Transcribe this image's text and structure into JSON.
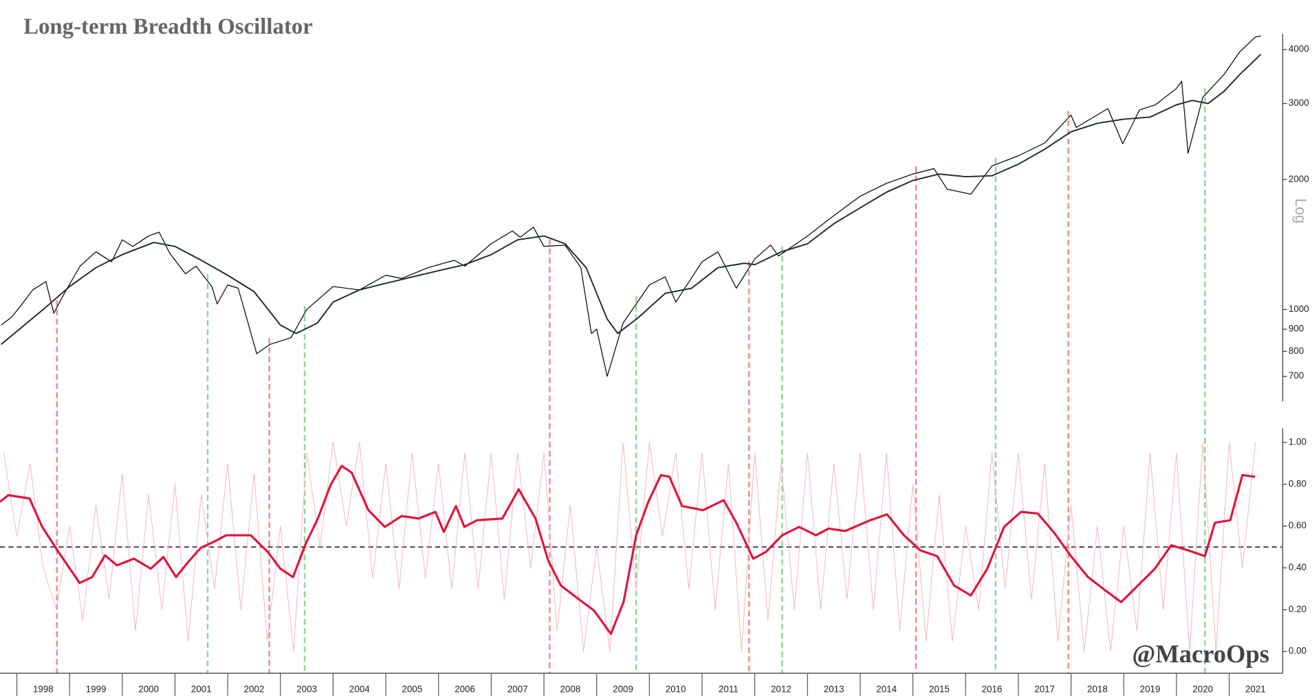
{
  "chart_data": [
    {
      "type": "line",
      "title": "Long-term Breadth Oscillator",
      "y_label": "Log",
      "log_scale": true,
      "xlim": [
        1997.68,
        2022.0
      ],
      "ylim": [
        612,
        4355
      ],
      "yticks": [
        700,
        800,
        900,
        1000,
        2000,
        3000,
        4000
      ],
      "series": [
        {
          "color": "#000000",
          "width": 1,
          "x": [
            1997.7,
            1997.9,
            1998.1,
            1998.3,
            1998.55,
            1998.7,
            1998.9,
            1999.2,
            1999.5,
            1999.8,
            2000.0,
            2000.2,
            2000.5,
            2000.7,
            2000.9,
            2001.2,
            2001.4,
            2001.7,
            2001.8,
            2002.0,
            2002.2,
            2002.55,
            2002.8,
            2003.2,
            2003.5,
            2004.0,
            2004.5,
            2005.0,
            2005.3,
            2005.8,
            2006.3,
            2006.5,
            2007.0,
            2007.4,
            2007.55,
            2007.8,
            2008.0,
            2008.4,
            2008.7,
            2008.9,
            2009.0,
            2009.2,
            2009.5,
            2010.0,
            2010.3,
            2010.5,
            2011.0,
            2011.3,
            2011.65,
            2012.0,
            2012.3,
            2012.45,
            2013.0,
            2013.5,
            2014.0,
            2014.5,
            2015.0,
            2015.4,
            2015.65,
            2016.1,
            2016.5,
            2017.0,
            2017.5,
            2018.0,
            2018.1,
            2018.7,
            2018.98,
            2019.3,
            2019.6,
            2020.0,
            2020.1,
            2020.22,
            2020.5,
            2020.9,
            2021.2,
            2021.5,
            2021.6
          ],
          "values": [
            920,
            960,
            1030,
            1110,
            1160,
            980,
            1090,
            1260,
            1360,
            1290,
            1450,
            1400,
            1480,
            1510,
            1350,
            1210,
            1260,
            1130,
            1030,
            1140,
            1120,
            790,
            830,
            860,
            1000,
            1130,
            1110,
            1200,
            1180,
            1250,
            1300,
            1260,
            1420,
            1520,
            1470,
            1550,
            1400,
            1410,
            1250,
            880,
            900,
            700,
            930,
            1140,
            1190,
            1040,
            1290,
            1360,
            1120,
            1310,
            1410,
            1330,
            1480,
            1650,
            1830,
            1960,
            2060,
            2120,
            1900,
            1850,
            2150,
            2270,
            2430,
            2820,
            2640,
            2920,
            2420,
            2900,
            2980,
            3250,
            3380,
            2300,
            3100,
            3500,
            3950,
            4280,
            4300
          ]
        },
        {
          "color": "#1c2a33",
          "width": 1.6,
          "x": [
            1997.7,
            1998.5,
            1999.0,
            1999.5,
            2000.0,
            2000.6,
            2001.0,
            2001.5,
            2002.0,
            2002.5,
            2003.0,
            2003.3,
            2003.7,
            2004.0,
            2004.5,
            2005.0,
            2006.0,
            2006.5,
            2007.0,
            2007.5,
            2008.0,
            2008.4,
            2008.8,
            2009.2,
            2009.4,
            2009.8,
            2010.3,
            2010.8,
            2011.3,
            2011.8,
            2012.0,
            2012.5,
            2013.0,
            2013.5,
            2014.0,
            2014.5,
            2015.0,
            2015.5,
            2016.0,
            2016.5,
            2017.0,
            2017.5,
            2018.0,
            2018.5,
            2019.0,
            2019.5,
            2020.0,
            2020.3,
            2020.6,
            2020.9,
            2021.2,
            2021.6
          ],
          "values": [
            830,
            1000,
            1130,
            1250,
            1340,
            1430,
            1400,
            1300,
            1200,
            1100,
            920,
            880,
            930,
            1040,
            1110,
            1150,
            1230,
            1270,
            1340,
            1450,
            1480,
            1420,
            1250,
            950,
            880,
            960,
            1090,
            1120,
            1250,
            1280,
            1270,
            1360,
            1420,
            1580,
            1720,
            1870,
            1990,
            2060,
            2030,
            2040,
            2170,
            2350,
            2580,
            2700,
            2760,
            2790,
            2980,
            3050,
            3000,
            3200,
            3500,
            3900
          ]
        }
      ]
    },
    {
      "type": "line",
      "xlim": [
        1997.68,
        2022.0
      ],
      "ylim": [
        -0.104,
        1.068
      ],
      "yticks": [
        {
          "value": 0,
          "label": "0.00"
        },
        {
          "value": 0.2,
          "label": "0.20"
        },
        {
          "value": 0.4,
          "label": "0.40"
        },
        {
          "value": 0.6,
          "label": "0.60"
        },
        {
          "value": 0.8,
          "label": "0.80"
        },
        {
          "value": 1,
          "label": "1.00"
        }
      ],
      "xticks": [
        1998,
        1999,
        2000,
        2001,
        2002,
        2003,
        2004,
        2005,
        2006,
        2007,
        2008,
        2009,
        2010,
        2011,
        2012,
        2013,
        2014,
        2015,
        2016,
        2017,
        2018,
        2019,
        2020,
        2021
      ],
      "reference_line": 0.5,
      "watermark": "@MacroOps",
      "series": [
        {
          "color": "#f4b4c0",
          "width": 0.8,
          "x": [
            1997.75,
            1998,
            1998.25,
            1998.5,
            1998.75,
            1999,
            1999.25,
            1999.5,
            1999.75,
            2000,
            2000.25,
            2000.5,
            2000.75,
            2001,
            2001.25,
            2001.5,
            2001.75,
            2002,
            2002.25,
            2002.5,
            2002.75,
            2003,
            2003.25,
            2003.5,
            2003.75,
            2004,
            2004.25,
            2004.5,
            2004.75,
            2005,
            2005.25,
            2005.5,
            2005.75,
            2006,
            2006.25,
            2006.5,
            2006.75,
            2007,
            2007.25,
            2007.5,
            2007.75,
            2008,
            2008.25,
            2008.5,
            2008.75,
            2009,
            2009.25,
            2009.5,
            2009.75,
            2010,
            2010.25,
            2010.5,
            2010.75,
            2011,
            2011.25,
            2011.5,
            2011.75,
            2012,
            2012.25,
            2012.5,
            2012.75,
            2013,
            2013.25,
            2013.5,
            2013.75,
            2014,
            2014.25,
            2014.5,
            2014.75,
            2015,
            2015.25,
            2015.5,
            2015.75,
            2016,
            2016.25,
            2016.5,
            2016.75,
            2017,
            2017.25,
            2017.5,
            2017.75,
            2018,
            2018.25,
            2018.5,
            2018.75,
            2019,
            2019.25,
            2019.5,
            2019.75,
            2020,
            2020.25,
            2020.5,
            2020.75,
            2021,
            2021.25,
            2021.5
          ],
          "values": [
            0.95,
            0.55,
            0.9,
            0.4,
            0.2,
            0.6,
            0.15,
            0.7,
            0.25,
            0.85,
            0.1,
            0.75,
            0.2,
            0.8,
            0.05,
            0.75,
            0.3,
            0.9,
            0.2,
            0.85,
            0.05,
            0.6,
            0,
            0.95,
            0.5,
            1,
            0.6,
            1,
            0.35,
            0.9,
            0.3,
            0.95,
            0.35,
            0.9,
            0.3,
            0.95,
            0.3,
            0.95,
            0.25,
            0.95,
            0.4,
            0.95,
            0.1,
            0.7,
            0,
            0.5,
            0,
            1,
            0.3,
            1,
            0.55,
            0.95,
            0.3,
            0.95,
            0.2,
            0.9,
            0,
            0.95,
            0.15,
            0.9,
            0.2,
            0.95,
            0.2,
            0.9,
            0.25,
            0.95,
            0.2,
            0.95,
            0.1,
            0.8,
            0.05,
            0.75,
            0.05,
            0.6,
            0.2,
            0.95,
            0.3,
            0.95,
            0.25,
            0.9,
            0.05,
            0.7,
            0,
            0.6,
            0,
            0.6,
            0.1,
            0.95,
            0.2,
            0.95,
            0,
            1,
            0,
            1,
            0.4,
            1
          ]
        },
        {
          "color": "#e0143c",
          "width": 2.6,
          "x": [
            1997.68,
            1997.84,
            1998.24,
            1998.48,
            1998.79,
            1999.19,
            1999.43,
            1999.67,
            1999.9,
            2000.22,
            2000.54,
            2000.78,
            2001.02,
            2001.25,
            2001.49,
            2001.73,
            2001.97,
            2002.44,
            2002.76,
            2003.0,
            2003.24,
            2003.48,
            2003.71,
            2003.95,
            2004.16,
            2004.35,
            2004.67,
            2004.98,
            2005.3,
            2005.62,
            2005.94,
            2006.1,
            2006.33,
            2006.49,
            2006.73,
            2007.21,
            2007.52,
            2007.84,
            2008.08,
            2008.32,
            2008.63,
            2008.95,
            2009.27,
            2009.51,
            2009.75,
            2009.98,
            2010.22,
            2010.38,
            2010.62,
            2011.02,
            2011.41,
            2011.65,
            2011.97,
            2012.21,
            2012.52,
            2012.84,
            2013.16,
            2013.4,
            2013.71,
            2014.19,
            2014.51,
            2014.83,
            2015.14,
            2015.46,
            2015.78,
            2016.1,
            2016.41,
            2016.73,
            2017.05,
            2017.37,
            2017.68,
            2018.0,
            2018.32,
            2018.63,
            2018.95,
            2019.27,
            2019.59,
            2019.9,
            2020.22,
            2020.54,
            2020.73,
            2021.02,
            2021.25,
            2021.49
          ],
          "values": [
            0.716,
            0.748,
            0.732,
            0.596,
            0.476,
            0.328,
            0.356,
            0.46,
            0.412,
            0.444,
            0.396,
            0.452,
            0.356,
            0.428,
            0.496,
            0.524,
            0.556,
            0.556,
            0.476,
            0.396,
            0.356,
            0.516,
            0.636,
            0.796,
            0.888,
            0.856,
            0.676,
            0.596,
            0.648,
            0.636,
            0.668,
            0.572,
            0.696,
            0.596,
            0.628,
            0.636,
            0.776,
            0.636,
            0.436,
            0.316,
            0.256,
            0.196,
            0.084,
            0.236,
            0.556,
            0.716,
            0.844,
            0.836,
            0.696,
            0.676,
            0.724,
            0.616,
            0.444,
            0.476,
            0.556,
            0.596,
            0.556,
            0.588,
            0.576,
            0.628,
            0.656,
            0.556,
            0.484,
            0.456,
            0.316,
            0.268,
            0.396,
            0.596,
            0.668,
            0.66,
            0.568,
            0.456,
            0.356,
            0.296,
            0.236,
            0.316,
            0.396,
            0.508,
            0.484,
            0.456,
            0.616,
            0.628,
            0.844,
            0.836
          ]
        }
      ],
      "signals": [
        {
          "x": 1998.76,
          "color": "#ef8a8a"
        },
        {
          "x": 2002.79,
          "color": "#ef8a8a"
        },
        {
          "x": 2008.11,
          "color": "#ef8a8a"
        },
        {
          "x": 2011.89,
          "color": "#ef8a8a"
        },
        {
          "x": 2015.06,
          "color": "#ef8a8a"
        },
        {
          "x": 2017.95,
          "color": "#ef8a8a"
        },
        {
          "x": 2001.62,
          "color": "#8fd39a"
        },
        {
          "x": 2003.46,
          "color": "#8fd39a"
        },
        {
          "x": 2009.75,
          "color": "#8fd39a"
        },
        {
          "x": 2012.52,
          "color": "#8fd39a"
        },
        {
          "x": 2016.57,
          "color": "#8fd39a"
        },
        {
          "x": 2020.54,
          "color": "#8fd39a"
        }
      ]
    }
  ]
}
